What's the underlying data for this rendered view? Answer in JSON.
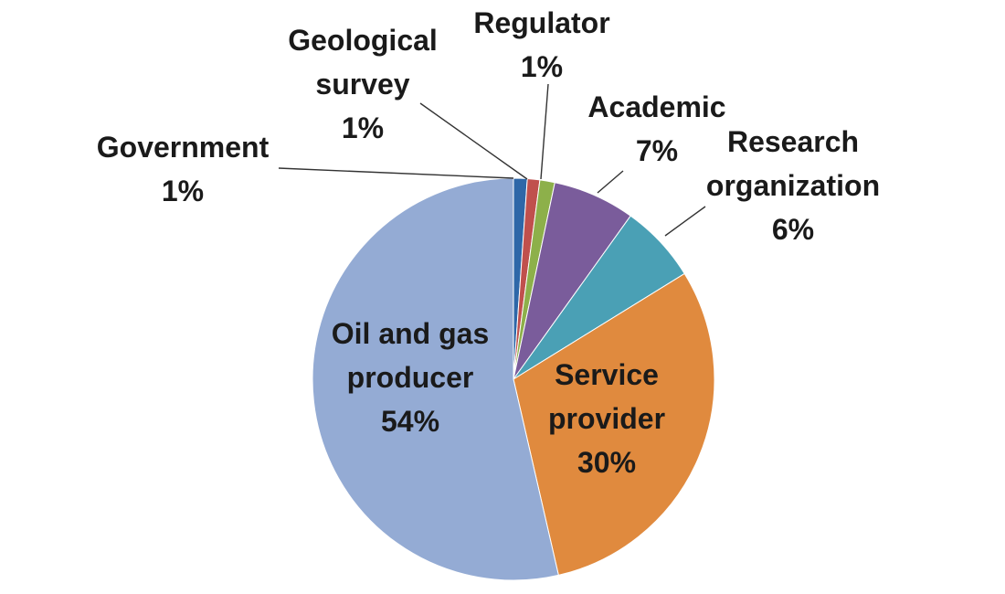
{
  "chart_data": {
    "type": "pie",
    "start": "top",
    "direction": "clockwise",
    "slices": [
      {
        "label_lines": [
          "Government"
        ],
        "value_text": "1%",
        "value": 1.1,
        "color": "#2e67a8"
      },
      {
        "label_lines": [
          "Geological",
          "survey"
        ],
        "value_text": "1%",
        "value": 1.0,
        "color": "#c0504d"
      },
      {
        "label_lines": [
          "Regulator"
        ],
        "value_text": "1%",
        "value": 1.2,
        "color": "#8db04a"
      },
      {
        "label_lines": [
          "Academic"
        ],
        "value_text": "7%",
        "value": 6.6,
        "color": "#7a5c9b"
      },
      {
        "label_lines": [
          "Research",
          "organization"
        ],
        "value_text": "6%",
        "value": 6.3,
        "color": "#4aa0b5"
      },
      {
        "label_lines": [
          "Service",
          "provider"
        ],
        "value_text": "30%",
        "value": 30.2,
        "color": "#e08a3e"
      },
      {
        "label_lines": [
          "Oil and gas",
          "producer"
        ],
        "value_text": "54%",
        "value": 53.6,
        "color": "#94abd4"
      }
    ]
  }
}
